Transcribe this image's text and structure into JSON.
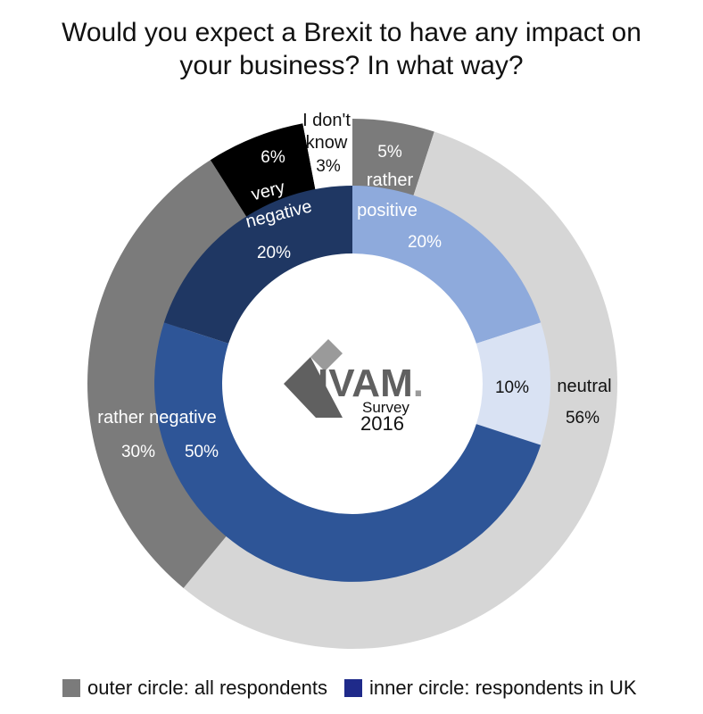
{
  "chart_data": {
    "type": "pie",
    "title_lines": [
      "Would you expect a Brexit to have any impact on",
      "your business? In what way?"
    ],
    "series": [
      {
        "name": "outer circle: all respondents",
        "ring": "outer",
        "color": "#7b7b7b",
        "slices": [
          {
            "label": "rather positive",
            "value": 5,
            "value_label": "5%",
            "color": "#7b7b7b",
            "text_color": "#ffffff"
          },
          {
            "label": "neutral",
            "value": 56,
            "value_label": "56%",
            "color": "#d6d6d6",
            "text_color": "#111111"
          },
          {
            "label": "rather negative",
            "value": 30,
            "value_label": "30%",
            "color": "#7b7b7b",
            "text_color": "#ffffff"
          },
          {
            "label": "very negative",
            "value": 6,
            "value_label": "6%",
            "color": "#000000",
            "text_color": "#ffffff"
          },
          {
            "label": "I don't know",
            "value": 3,
            "value_label": "3%",
            "color": "#ffffff",
            "text_color": "#111111"
          }
        ]
      },
      {
        "name": "inner circle: respondents in UK",
        "ring": "inner",
        "color": "#1f2a8a",
        "slices": [
          {
            "label": "rather positive",
            "value": 20,
            "value_label": "20%",
            "color": "#8eaadc",
            "text_color": "#ffffff"
          },
          {
            "label": "neutral",
            "value": 10,
            "value_label": "10%",
            "color": "#d9e2f3",
            "text_color": "#111111"
          },
          {
            "label": "rather negative",
            "value": 50,
            "value_label": "50%",
            "color": "#2e5597",
            "text_color": "#ffffff"
          },
          {
            "label": "very negative",
            "value": 20,
            "value_label": "20%",
            "color": "#1f3763",
            "text_color": "#ffffff"
          }
        ]
      }
    ],
    "labels": {
      "outer_rather_positive": "rather",
      "inner_rather_positive": "positive",
      "outer_very_negative": "very",
      "inner_very_negative": "negative",
      "outer_dont_know_1": "I don't",
      "outer_dont_know_2": "know",
      "neutral": "neutral",
      "rather_negative": "rather negative"
    }
  },
  "logo": {
    "brand": "IVAM.",
    "brand_ivam": "IVAM",
    "brand_dot": ".",
    "survey": "Survey",
    "year": "2016",
    "colors": {
      "dark": "#606060",
      "light": "#9a9a9a"
    }
  },
  "legend": {
    "items": [
      {
        "label": "outer circle: all respondents",
        "color": "#7b7b7b"
      },
      {
        "label": "inner circle: respondents in UK",
        "color": "#1f2a8a"
      }
    ]
  }
}
